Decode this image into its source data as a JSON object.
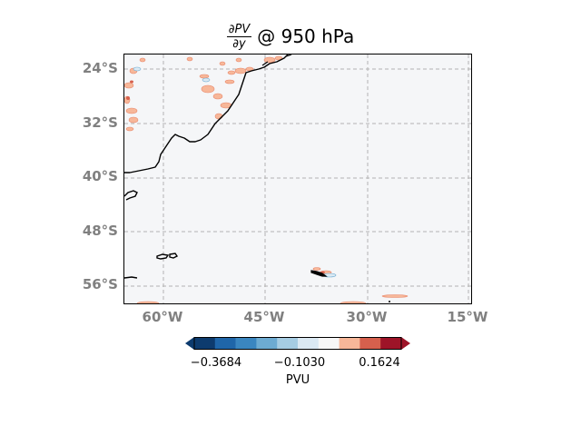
{
  "title": {
    "numerator": "∂PV",
    "denominator": "∂y",
    "suffix": "@ 950 hPa"
  },
  "map": {
    "lat_labels": [
      "24°S",
      "32°S",
      "40°S",
      "48°S",
      "56°S"
    ],
    "lat_values": [
      -24,
      -32,
      -40,
      -48,
      -56
    ],
    "lon_labels": [
      "60°W",
      "45°W",
      "30°W",
      "15°W"
    ],
    "lon_values": [
      -60,
      -45,
      -30,
      -15
    ],
    "lat_range": [
      -59,
      -22
    ],
    "lon_range": [
      -65.5,
      -14.5
    ],
    "gridlines": true,
    "ocean_color": "#f5f6f8",
    "coast_color": "#000000"
  },
  "colorbar": {
    "label": "PVU",
    "tick_labels": [
      "−0.3684",
      "−0.1030",
      "0.1624"
    ],
    "tick_values": [
      -0.3684,
      -0.103,
      0.1624
    ],
    "colors": [
      "#0d3b6e",
      "#1f66a9",
      "#3a86c0",
      "#6dabd2",
      "#a6cde3",
      "#dbe9f3",
      "#f7f7f7",
      "#f7b799",
      "#d6604d",
      "#9e1428"
    ],
    "extend": "both"
  }
}
